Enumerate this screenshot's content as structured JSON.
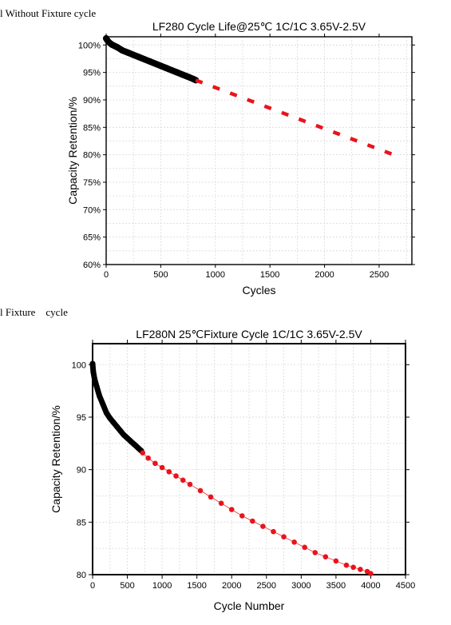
{
  "captions": {
    "top": "l Without Fixture cycle",
    "bottom": "l Fixture    cycle"
  },
  "chart_data": [
    {
      "type": "line",
      "title": "LF280  Cycle Life@25℃ 1C/1C 3.65V-2.5V",
      "xlabel": "Cycles",
      "ylabel": "Capacity Retention/%",
      "xlim": [
        0,
        2800
      ],
      "ylim": [
        60,
        101.5
      ],
      "xticks": [
        0,
        500,
        1000,
        1500,
        2000,
        2500
      ],
      "xtick_labels": [
        "0",
        "500",
        "1000",
        "1500",
        "2000",
        "2500"
      ],
      "yticks": [
        60,
        65,
        70,
        75,
        80,
        85,
        90,
        95,
        100
      ],
      "ytick_labels": [
        "60%",
        "65%",
        "70%",
        "75%",
        "80%",
        "85%",
        "90%",
        "95%",
        "100%"
      ],
      "grid": true,
      "series": [
        {
          "style": "measured",
          "color": "#000000",
          "x": [
            0,
            20,
            50,
            100,
            150,
            200,
            250,
            300,
            350,
            400,
            450,
            500,
            550,
            600,
            650,
            700,
            750,
            800,
            820
          ],
          "y": [
            101.2,
            100.6,
            100.1,
            99.6,
            99.0,
            98.6,
            98.2,
            97.8,
            97.4,
            97.0,
            96.6,
            96.2,
            95.8,
            95.4,
            95.0,
            94.6,
            94.2,
            93.8,
            93.6
          ]
        },
        {
          "style": "projected",
          "color": "#e8141b",
          "x": [
            820,
            2660
          ],
          "y": [
            93.6,
            79.8
          ]
        }
      ]
    },
    {
      "type": "scatter",
      "title": "LF280N 25℃Fixture Cycle 1C/1C 3.65V-2.5V",
      "xlabel": "Cycle Number",
      "ylabel": "Capacity Retention/%",
      "xlim": [
        0,
        4500
      ],
      "ylim": [
        80,
        102
      ],
      "xticks": [
        0,
        500,
        1000,
        1500,
        2000,
        2500,
        3000,
        3500,
        4000,
        4500
      ],
      "xtick_labels": [
        "0",
        "500",
        "1000",
        "1500",
        "2000",
        "2500",
        "3000",
        "3500",
        "4000",
        "4500"
      ],
      "yticks": [
        80,
        85,
        90,
        95,
        100
      ],
      "ytick_labels": [
        "80",
        "85",
        "90",
        "95",
        "100"
      ],
      "grid": true,
      "series": [
        {
          "style": "measured",
          "color": "#000000",
          "x": [
            0,
            10,
            30,
            60,
            100,
            150,
            200,
            250,
            300,
            350,
            400,
            450,
            500,
            550,
            600,
            650,
            700
          ],
          "y": [
            100.1,
            99.3,
            98.6,
            97.9,
            97.0,
            96.2,
            95.4,
            94.9,
            94.5,
            94.1,
            93.7,
            93.3,
            93.0,
            92.7,
            92.4,
            92.1,
            91.8
          ]
        },
        {
          "style": "projected",
          "color": "#e8141b",
          "x": [
            720,
            800,
            900,
            1000,
            1100,
            1200,
            1300,
            1400,
            1550,
            1700,
            1850,
            2000,
            2150,
            2300,
            2450,
            2600,
            2750,
            2900,
            3050,
            3200,
            3350,
            3500,
            3650,
            3750,
            3850,
            3950,
            4000
          ],
          "y": [
            91.6,
            91.1,
            90.6,
            90.2,
            89.8,
            89.4,
            89.0,
            88.6,
            88.0,
            87.4,
            86.8,
            86.2,
            85.6,
            85.1,
            84.6,
            84.1,
            83.6,
            83.1,
            82.6,
            82.1,
            81.7,
            81.3,
            80.9,
            80.7,
            80.5,
            80.3,
            80.1
          ]
        }
      ]
    }
  ]
}
